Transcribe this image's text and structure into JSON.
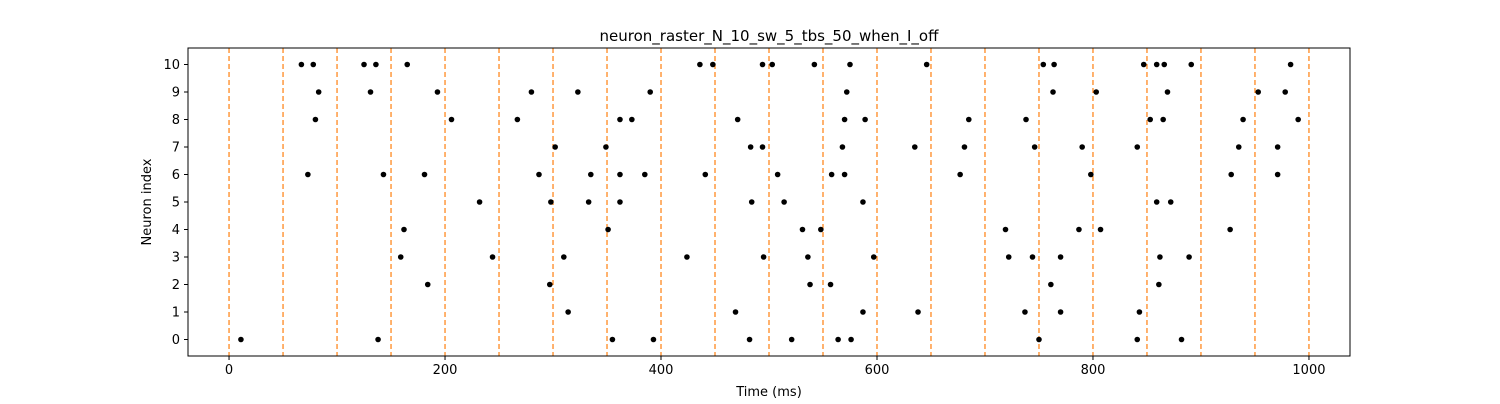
{
  "chart_data": {
    "type": "scatter",
    "title": "neuron_raster_N_10_sw_5_tbs_50_when_I_off",
    "xlabel": "Time (ms)",
    "ylabel": "Neuron index",
    "xlim": [
      -38,
      1038
    ],
    "ylim": [
      -0.6,
      10.6
    ],
    "xticks": [
      0,
      200,
      400,
      600,
      800,
      1000
    ],
    "yticks": [
      0,
      1,
      2,
      3,
      4,
      5,
      6,
      7,
      8,
      9,
      10
    ],
    "grid": false,
    "marker_color": "#000000",
    "vlines": {
      "x": [
        0,
        50,
        100,
        150,
        200,
        250,
        300,
        350,
        400,
        450,
        500,
        550,
        600,
        650,
        700,
        750,
        800,
        850,
        900,
        950,
        1000
      ],
      "color": "#ff7f0e",
      "style": "dashed"
    },
    "spikes": [
      {
        "neuron": 10,
        "times": [
          67,
          78,
          125,
          136,
          165,
          436,
          448,
          494,
          503,
          542,
          575,
          646,
          754,
          764,
          847,
          859,
          866,
          891,
          983
        ]
      },
      {
        "neuron": 9,
        "times": [
          83,
          131,
          193,
          280,
          323,
          390,
          572,
          763,
          803,
          869,
          953,
          978
        ]
      },
      {
        "neuron": 8,
        "times": [
          80,
          206,
          267,
          362,
          373,
          471,
          570,
          589,
          685,
          738,
          853,
          865,
          939,
          990
        ]
      },
      {
        "neuron": 7,
        "times": [
          302,
          349,
          483,
          494,
          568,
          635,
          681,
          746,
          790,
          841,
          935,
          971
        ]
      },
      {
        "neuron": 6,
        "times": [
          73,
          143,
          181,
          287,
          335,
          362,
          385,
          441,
          508,
          558,
          570,
          677,
          798,
          928,
          971
        ]
      },
      {
        "neuron": 5,
        "times": [
          232,
          298,
          333,
          362,
          484,
          514,
          587,
          859,
          872
        ]
      },
      {
        "neuron": 4,
        "times": [
          162,
          351,
          531,
          548,
          719,
          787,
          807,
          927
        ]
      },
      {
        "neuron": 3,
        "times": [
          159,
          244,
          310,
          424,
          495,
          536,
          597,
          722,
          744,
          770,
          862,
          889
        ]
      },
      {
        "neuron": 2,
        "times": [
          184,
          297,
          538,
          557,
          761,
          861
        ]
      },
      {
        "neuron": 1,
        "times": [
          314,
          469,
          587,
          638,
          737,
          770,
          843
        ]
      },
      {
        "neuron": 0,
        "times": [
          11,
          138,
          355,
          393,
          482,
          521,
          564,
          576,
          750,
          841,
          882
        ]
      }
    ]
  }
}
